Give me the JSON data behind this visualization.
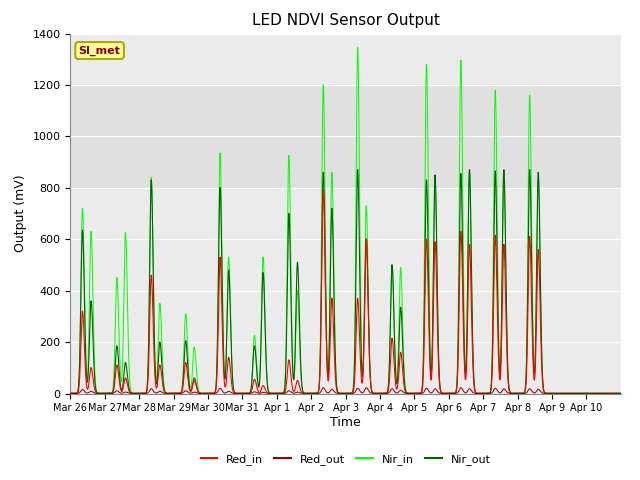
{
  "title": "LED NDVI Sensor Output",
  "xlabel": "Time",
  "ylabel": "Output (mV)",
  "ylim": [
    0,
    1400
  ],
  "background_color": "#ffffff",
  "plot_bg_color": "#ebebeb",
  "annotation_text": "SI_met",
  "annotation_color": "#8B0000",
  "annotation_bg": "#ffff99",
  "annotation_edge": "#aaaa00",
  "grid_color": "#ffffff",
  "colors": {
    "Red_in": "#ff0000",
    "Red_out": "#8B0000",
    "Nir_in": "#00ff00",
    "Nir_out": "#006400"
  },
  "x_tick_labels": [
    "Mar 26",
    "Mar 27",
    "Mar 28",
    "Mar 29",
    "Mar 30",
    "Mar 31",
    "Apr 1",
    "Apr 2",
    "Apr 3",
    "Apr 4",
    "Apr 5",
    "Apr 6",
    "Apr 7",
    "Apr 8",
    "Apr 9",
    "Apr 10"
  ],
  "shaded_band": [
    800,
    1200
  ],
  "peaks": [
    {
      "day": 0.35,
      "red_in": 320,
      "red_out": 15,
      "nir_in": 720,
      "nir_out": 635
    },
    {
      "day": 0.6,
      "red_in": 100,
      "red_out": 8,
      "nir_in": 630,
      "nir_out": 360
    },
    {
      "day": 1.35,
      "red_in": 110,
      "red_out": 10,
      "nir_in": 450,
      "nir_out": 185
    },
    {
      "day": 1.6,
      "red_in": 60,
      "red_out": 5,
      "nir_in": 625,
      "nir_out": 120
    },
    {
      "day": 2.35,
      "red_in": 460,
      "red_out": 18,
      "nir_in": 840,
      "nir_out": 830
    },
    {
      "day": 2.6,
      "red_in": 110,
      "red_out": 8,
      "nir_in": 350,
      "nir_out": 200
    },
    {
      "day": 3.35,
      "red_in": 120,
      "red_out": 10,
      "nir_in": 310,
      "nir_out": 205
    },
    {
      "day": 3.6,
      "red_in": 50,
      "red_out": 5,
      "nir_in": 180,
      "nir_out": 60
    },
    {
      "day": 4.35,
      "red_in": 530,
      "red_out": 20,
      "nir_in": 935,
      "nir_out": 800
    },
    {
      "day": 4.6,
      "red_in": 140,
      "red_out": 8,
      "nir_in": 530,
      "nir_out": 480
    },
    {
      "day": 5.35,
      "red_in": 55,
      "red_out": 6,
      "nir_in": 225,
      "nir_out": 185
    },
    {
      "day": 5.6,
      "red_in": 30,
      "red_out": 4,
      "nir_in": 530,
      "nir_out": 470
    },
    {
      "day": 6.35,
      "red_in": 130,
      "red_out": 10,
      "nir_in": 925,
      "nir_out": 700
    },
    {
      "day": 6.6,
      "red_in": 50,
      "red_out": 5,
      "nir_in": 400,
      "nir_out": 510
    },
    {
      "day": 7.35,
      "red_in": 790,
      "red_out": 22,
      "nir_in": 1200,
      "nir_out": 860
    },
    {
      "day": 7.6,
      "red_in": 370,
      "red_out": 16,
      "nir_in": 860,
      "nir_out": 720
    },
    {
      "day": 8.35,
      "red_in": 370,
      "red_out": 20,
      "nir_in": 1345,
      "nir_out": 870
    },
    {
      "day": 8.6,
      "red_in": 600,
      "red_out": 22,
      "nir_in": 730,
      "nir_out": 600
    },
    {
      "day": 9.35,
      "red_in": 215,
      "red_out": 18,
      "nir_in": 500,
      "nir_out": 500
    },
    {
      "day": 9.6,
      "red_in": 160,
      "red_out": 12,
      "nir_in": 490,
      "nir_out": 335
    },
    {
      "day": 10.35,
      "red_in": 600,
      "red_out": 20,
      "nir_in": 1280,
      "nir_out": 830
    },
    {
      "day": 10.6,
      "red_in": 590,
      "red_out": 18,
      "nir_in": 830,
      "nir_out": 850
    },
    {
      "day": 11.35,
      "red_in": 630,
      "red_out": 22,
      "nir_in": 1295,
      "nir_out": 855
    },
    {
      "day": 11.6,
      "red_in": 580,
      "red_out": 18,
      "nir_in": 860,
      "nir_out": 870
    },
    {
      "day": 12.35,
      "red_in": 615,
      "red_out": 20,
      "nir_in": 1180,
      "nir_out": 865
    },
    {
      "day": 12.6,
      "red_in": 580,
      "red_out": 18,
      "nir_in": 860,
      "nir_out": 870
    },
    {
      "day": 13.35,
      "red_in": 610,
      "red_out": 18,
      "nir_in": 1160,
      "nir_out": 870
    },
    {
      "day": 13.6,
      "red_in": 560,
      "red_out": 16,
      "nir_in": 830,
      "nir_out": 860
    }
  ]
}
